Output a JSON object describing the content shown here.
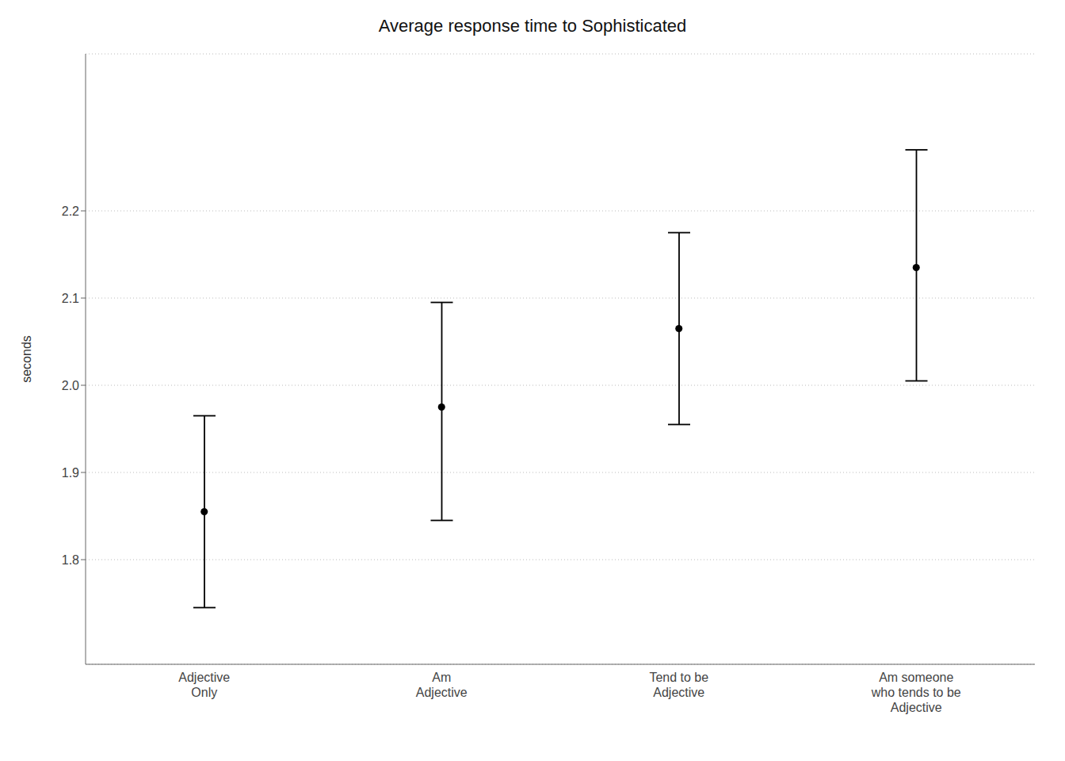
{
  "chart_data": {
    "type": "errorbar",
    "title": "Average response time to Sophisticated",
    "ylabel": "seconds",
    "categories": [
      "Adjective\nOnly",
      "Am\nAdjective",
      "Tend to be\nAdjective",
      "Am someone\nwho tends to be\nAdjective"
    ],
    "values": [
      1.855,
      1.975,
      2.065,
      2.135
    ],
    "ci_lower": [
      1.745,
      1.845,
      1.955,
      2.005
    ],
    "ci_upper": [
      1.965,
      2.095,
      2.175,
      2.27
    ],
    "ylim": [
      1.68,
      2.38
    ],
    "yticks": [
      {
        "value": 1.8,
        "label": "1.8"
      },
      {
        "value": 1.9,
        "label": "1.9"
      },
      {
        "value": 2,
        "label": "2.0"
      },
      {
        "value": 2.1,
        "label": "2.1"
      },
      {
        "value": 2.2,
        "label": "2.2"
      }
    ],
    "grid": true,
    "color": "#000000",
    "marker": "circle"
  }
}
